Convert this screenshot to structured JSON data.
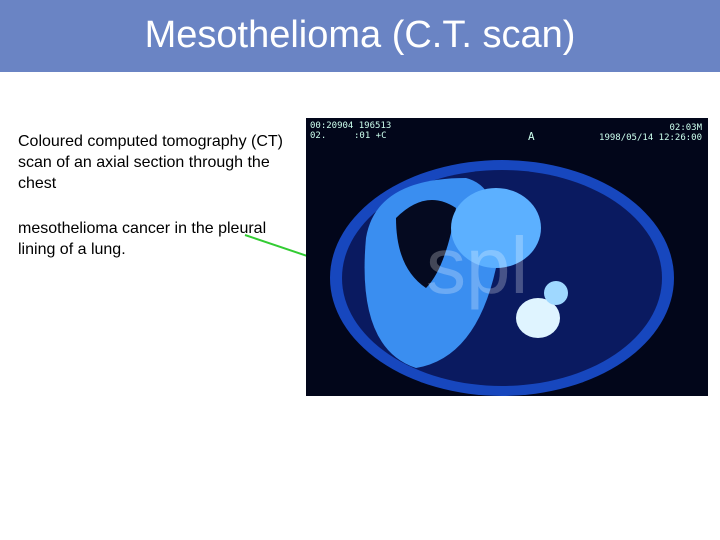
{
  "header": {
    "title": "Mesothelioma (C.T. scan)"
  },
  "body": {
    "paragraphs": [
      "Coloured computed tomography (CT) scan of an axial section through the chest",
      "mesothelioma cancer in the pleural lining of a lung."
    ]
  },
  "image": {
    "overlay": {
      "top_left": "00:20904   196513",
      "top_left_2": "02.",
      "top_left_3": ":01 +C",
      "top_right": "02:03M",
      "top_right_2": "1998/05/14 12:26:00",
      "anterior": "A",
      "watermark": "spl"
    }
  }
}
